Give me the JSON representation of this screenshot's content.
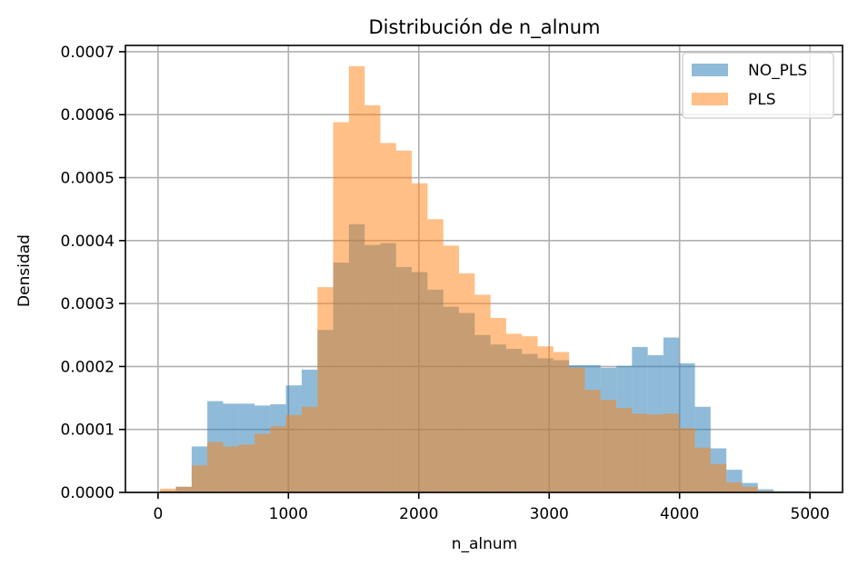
{
  "chart_data": {
    "type": "bar",
    "title": "Distribución de n_alnum",
    "xlabel": "n_alnum",
    "ylabel": "Densidad",
    "xlim": [
      -250,
      5250
    ],
    "ylim": [
      0,
      0.00071
    ],
    "x_ticks": [
      0,
      1000,
      2000,
      3000,
      4000,
      5000
    ],
    "x_tick_labels": [
      "0",
      "1000",
      "2000",
      "3000",
      "4000",
      "5000"
    ],
    "y_ticks": [
      0,
      0.0001,
      0.0002,
      0.0003,
      0.0004,
      0.0005,
      0.0006,
      0.0007
    ],
    "y_tick_labels": [
      "0.0000",
      "0.0001",
      "0.0002",
      "0.0003",
      "0.0004",
      "0.0005",
      "0.0006",
      "0.0007"
    ],
    "grid": true,
    "legend_position": "top-right",
    "series": [
      {
        "name": "NO_PLS",
        "color": "#1f77b4",
        "alpha": 0.5,
        "bin_edges": [
          16,
          137,
          258,
          378,
          499,
          619,
          740,
          861,
          981,
          1102,
          1223,
          1343,
          1464,
          1585,
          1705,
          1826,
          1946,
          2067,
          2188,
          2308,
          2429,
          2550,
          2670,
          2791,
          2911,
          3032,
          3153,
          3273,
          3394,
          3515,
          3635,
          3756,
          3876,
          3997,
          4118,
          4238,
          4359,
          4480,
          4600,
          4721,
          4842,
          4962,
          5083
        ],
        "values": [
          2.5e-06,
          9e-06,
          7.3e-05,
          0.000145,
          0.000141,
          0.000141,
          0.000138,
          0.00014,
          0.00017,
          0.000195,
          0.000258,
          0.000365,
          0.000426,
          0.000393,
          0.000396,
          0.000358,
          0.00035,
          0.000322,
          0.000295,
          0.000285,
          0.00025,
          0.000235,
          0.000228,
          0.00022,
          0.000213,
          0.00021,
          0.000202,
          0.000202,
          0.000198,
          0.000201,
          0.000231,
          0.000218,
          0.000246,
          0.000205,
          0.000136,
          7e-05,
          3.6e-05,
          1.5e-05,
          5e-06,
          2e-06,
          2e-06,
          1e-06
        ]
      },
      {
        "name": "PLS",
        "color": "#ff7f0e",
        "alpha": 0.5,
        "bin_edges": [
          16,
          137,
          258,
          378,
          499,
          619,
          740,
          861,
          981,
          1102,
          1223,
          1343,
          1464,
          1585,
          1705,
          1826,
          1946,
          2067,
          2188,
          2308,
          2429,
          2550,
          2670,
          2791,
          2911,
          3032,
          3153,
          3273,
          3394,
          3515,
          3635,
          3756,
          3876,
          3997,
          4118,
          4238,
          4359,
          4480,
          4600,
          4721,
          4842,
          4962,
          5083
        ],
        "values": [
          6e-06,
          9e-06,
          4.3e-05,
          8e-05,
          7.3e-05,
          7.6e-05,
          9.3e-05,
          0.000105,
          0.000123,
          0.000136,
          0.000326,
          0.000588,
          0.000677,
          0.000615,
          0.000555,
          0.000543,
          0.000491,
          0.000434,
          0.000392,
          0.000348,
          0.000314,
          0.000277,
          0.000252,
          0.000248,
          0.000232,
          0.000223,
          0.000198,
          0.000163,
          0.000147,
          0.000134,
          0.000125,
          0.000124,
          0.000125,
          0.000102,
          7.1e-05,
          4.5e-05,
          1.6e-05,
          9e-06,
          2e-06,
          1e-06,
          1e-06,
          0
        ]
      }
    ]
  }
}
